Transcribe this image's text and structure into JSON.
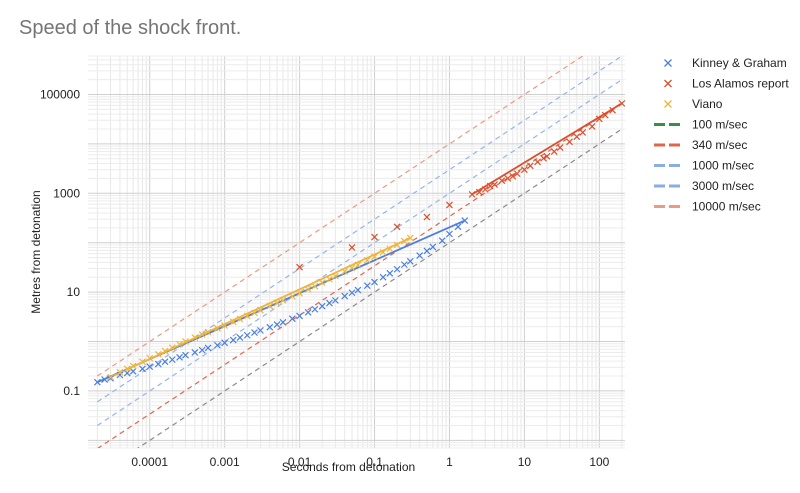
{
  "chart_data": {
    "type": "scatter",
    "title": "Speed of the shock front.",
    "xlabel": "Seconds from detonation",
    "ylabel": "Metres from detonation",
    "x_scale": "log",
    "y_scale": "log",
    "xlim": [
      1.5e-05,
      220
    ],
    "ylim": [
      0.007,
      600000
    ],
    "x_ticks": [
      {
        "value": 0.0001,
        "label": "0.0001"
      },
      {
        "value": 0.001,
        "label": "0.001"
      },
      {
        "value": 0.01,
        "label": "0.01"
      },
      {
        "value": 0.1,
        "label": "0.1"
      },
      {
        "value": 1,
        "label": "1"
      },
      {
        "value": 10,
        "label": "10"
      },
      {
        "value": 100,
        "label": "100"
      }
    ],
    "y_ticks": [
      {
        "value": 0.1,
        "label": "0.1"
      },
      {
        "value": 10,
        "label": "10"
      },
      {
        "value": 1000,
        "label": "1000"
      },
      {
        "value": 100000,
        "label": "100000"
      }
    ],
    "grid": true,
    "legend_position": "right",
    "series": [
      {
        "name": "Kinney & Graham",
        "kind": "scatter",
        "marker": "x",
        "color": "#4a7fe0",
        "points": [
          [
            2e-05,
            0.15
          ],
          [
            2.5e-05,
            0.17
          ],
          [
            3e-05,
            0.18
          ],
          [
            4e-05,
            0.21
          ],
          [
            5e-05,
            0.23
          ],
          [
            6e-05,
            0.25
          ],
          [
            8e-05,
            0.28
          ],
          [
            0.0001,
            0.31
          ],
          [
            0.00013,
            0.35
          ],
          [
            0.00016,
            0.39
          ],
          [
            0.0002,
            0.43
          ],
          [
            0.00025,
            0.48
          ],
          [
            0.0003,
            0.53
          ],
          [
            0.0004,
            0.6
          ],
          [
            0.0005,
            0.67
          ],
          [
            0.0006,
            0.74
          ],
          [
            0.0008,
            0.84
          ],
          [
            0.001,
            0.94
          ],
          [
            0.0013,
            1.07
          ],
          [
            0.0016,
            1.2
          ],
          [
            0.002,
            1.34
          ],
          [
            0.0025,
            1.52
          ],
          [
            0.003,
            1.68
          ],
          [
            0.004,
            1.95
          ],
          [
            0.005,
            2.2
          ],
          [
            0.006,
            2.45
          ],
          [
            0.008,
            2.9
          ],
          [
            0.01,
            3.3
          ],
          [
            0.013,
            3.9
          ],
          [
            0.016,
            4.5
          ],
          [
            0.02,
            5.2
          ],
          [
            0.025,
            6.0
          ],
          [
            0.03,
            6.8
          ],
          [
            0.04,
            8.3
          ],
          [
            0.05,
            9.7
          ],
          [
            0.06,
            11
          ],
          [
            0.08,
            13.5
          ],
          [
            0.1,
            16
          ],
          [
            0.13,
            20
          ],
          [
            0.16,
            24
          ],
          [
            0.2,
            29
          ],
          [
            0.25,
            36
          ],
          [
            0.3,
            42
          ],
          [
            0.4,
            55
          ],
          [
            0.5,
            68
          ],
          [
            0.6,
            82
          ],
          [
            0.8,
            110
          ],
          [
            1,
            150
          ],
          [
            1.3,
            210
          ],
          [
            1.6,
            280
          ]
        ]
      },
      {
        "name": "Los Alamos report",
        "kind": "scatter",
        "marker": "x",
        "color": "#db4f2b",
        "points": [
          [
            0.01,
            32
          ],
          [
            0.05,
            80
          ],
          [
            0.1,
            130
          ],
          [
            0.2,
            210
          ],
          [
            0.5,
            330
          ],
          [
            1,
            580
          ],
          [
            2,
            950
          ],
          [
            2.5,
            1050
          ],
          [
            3,
            1200
          ],
          [
            3.5,
            1400
          ],
          [
            4,
            1500
          ],
          [
            5,
            1800
          ],
          [
            6,
            2000
          ],
          [
            7,
            2200
          ],
          [
            8,
            2500
          ],
          [
            10,
            3000
          ],
          [
            12,
            3600
          ],
          [
            15,
            4300
          ],
          [
            18,
            5100
          ],
          [
            20,
            5600
          ],
          [
            25,
            7000
          ],
          [
            30,
            8400
          ],
          [
            40,
            11000
          ],
          [
            50,
            14000
          ],
          [
            60,
            17000
          ],
          [
            80,
            22500
          ],
          [
            100,
            32000
          ],
          [
            120,
            38000
          ],
          [
            150,
            48000
          ],
          [
            200,
            66000
          ]
        ]
      },
      {
        "name": "Viano",
        "kind": "scatter",
        "marker": "x",
        "color": "#f0b43a",
        "points": [
          [
            3e-05,
            0.19
          ],
          [
            4e-05,
            0.24
          ],
          [
            5e-05,
            0.28
          ],
          [
            6e-05,
            0.32
          ],
          [
            8e-05,
            0.39
          ],
          [
            0.0001,
            0.46
          ],
          [
            0.00013,
            0.55
          ],
          [
            0.00016,
            0.64
          ],
          [
            0.0002,
            0.75
          ],
          [
            0.00025,
            0.88
          ],
          [
            0.0003,
            1.0
          ],
          [
            0.0004,
            1.2
          ],
          [
            0.0005,
            1.38
          ],
          [
            0.0006,
            1.55
          ],
          [
            0.0008,
            1.85
          ],
          [
            0.001,
            2.1
          ],
          [
            0.0013,
            2.5
          ],
          [
            0.0016,
            2.85
          ],
          [
            0.002,
            3.3
          ],
          [
            0.0025,
            3.8
          ],
          [
            0.003,
            4.3
          ],
          [
            0.004,
            5.2
          ],
          [
            0.005,
            6.0
          ],
          [
            0.006,
            6.8
          ],
          [
            0.008,
            8.2
          ],
          [
            0.01,
            9.5
          ],
          [
            0.013,
            11.4
          ],
          [
            0.016,
            13.2
          ],
          [
            0.02,
            15.5
          ],
          [
            0.025,
            18.2
          ],
          [
            0.03,
            21
          ],
          [
            0.04,
            26
          ],
          [
            0.05,
            31
          ],
          [
            0.06,
            35.5
          ],
          [
            0.08,
            44
          ],
          [
            0.1,
            52
          ],
          [
            0.13,
            64
          ],
          [
            0.16,
            75
          ],
          [
            0.2,
            90
          ],
          [
            0.25,
            108
          ],
          [
            0.3,
            125
          ]
        ]
      },
      {
        "name": "100 m/sec",
        "kind": "line",
        "dash": true,
        "color": "#8a8a8a",
        "legend_color": "#3a8e4a",
        "x": [
          2e-05,
          200
        ],
        "y": [
          0.002,
          20000
        ]
      },
      {
        "name": "340 m/sec",
        "kind": "line",
        "dash": true,
        "color": "#e0654a",
        "legend_color": "#e0654a",
        "x": [
          2e-05,
          200
        ],
        "y": [
          0.0068,
          68000
        ]
      },
      {
        "name": "1000 m/sec",
        "kind": "line",
        "dash": true,
        "color": "#94b5ea",
        "legend_color": "#8aaedf",
        "x": [
          2e-05,
          200
        ],
        "y": [
          0.02,
          200000
        ]
      },
      {
        "name": "3000 m/sec",
        "kind": "line",
        "dash": true,
        "color": "#94b5ea",
        "legend_color": "#8aaedf",
        "x": [
          2e-05,
          200
        ],
        "y": [
          0.06,
          600000
        ]
      },
      {
        "name": "10000 m/sec",
        "kind": "line",
        "dash": true,
        "color": "#e99a80",
        "legend_color": "#e99a80",
        "x": [
          2e-05,
          200
        ],
        "y": [
          0.2,
          2000000
        ]
      }
    ],
    "fit_lines": [
      {
        "color": "#4a7fe0",
        "x": [
          2e-05,
          1.6
        ],
        "y": [
          0.15,
          280
        ]
      },
      {
        "color": "#db4f2b",
        "x": [
          2,
          200
        ],
        "y": [
          950,
          66000
        ]
      },
      {
        "color": "#f0b43a",
        "x": [
          3e-05,
          0.3
        ],
        "y": [
          0.19,
          125
        ]
      }
    ]
  }
}
